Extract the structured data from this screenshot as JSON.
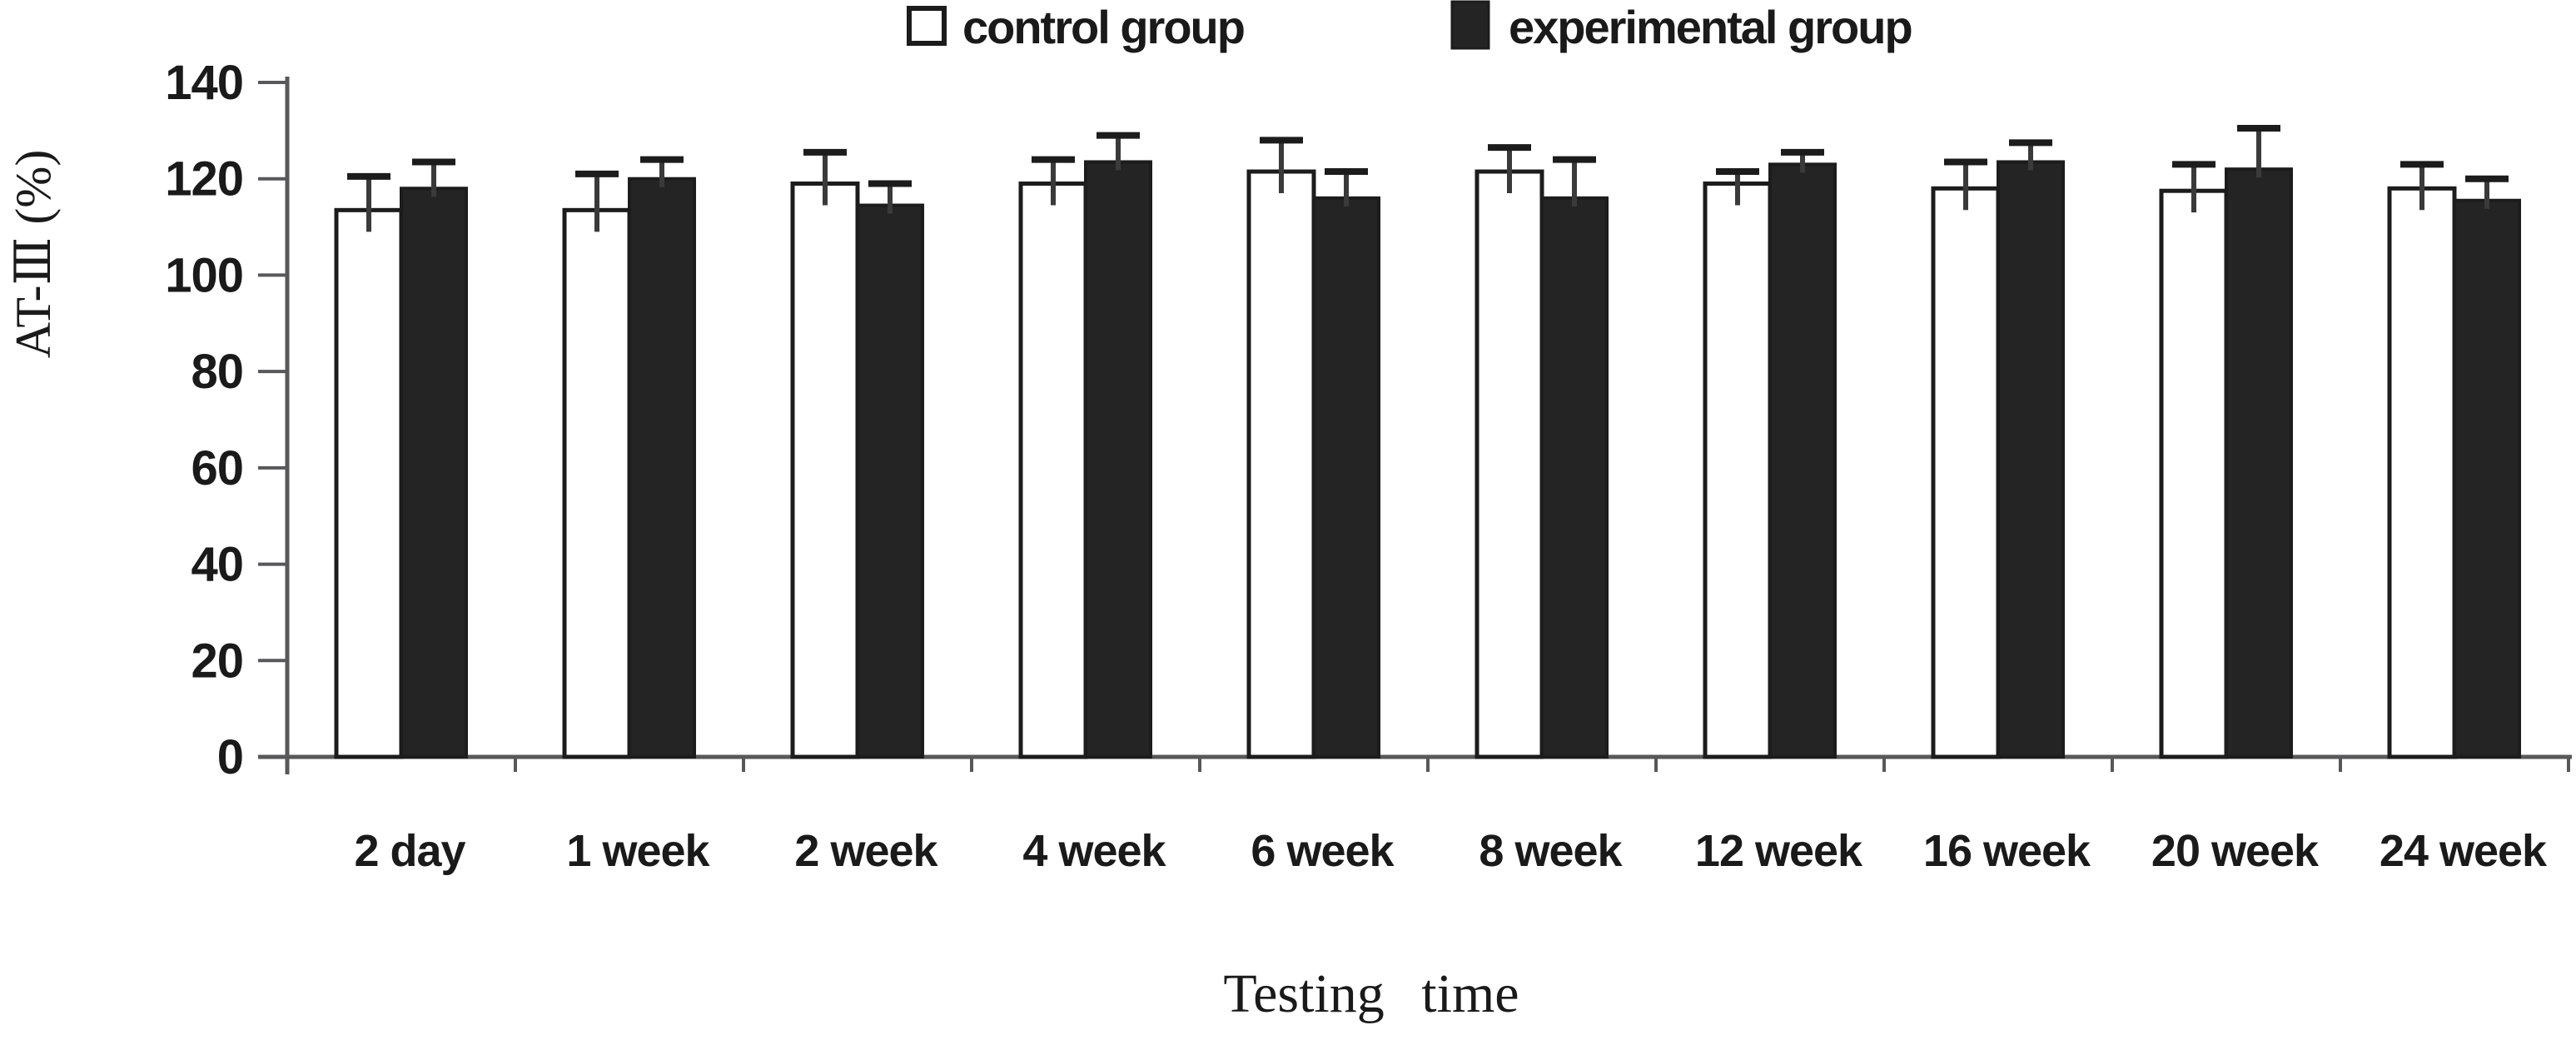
{
  "chart_data": {
    "type": "bar",
    "title": "",
    "xlabel": "Testing time",
    "ylabel": "AT-Ⅲ (%)",
    "categories": [
      "2 day",
      "1 week",
      "2 week",
      "4 week",
      "6 week",
      "8 week",
      "12 week",
      "16 week",
      "20 week",
      "24 week"
    ],
    "series": [
      {
        "name": "control group",
        "values": [
          113.5,
          113.5,
          119,
          119,
          121.5,
          121.5,
          119,
          118,
          117.5,
          118
        ],
        "errors": [
          7,
          7.5,
          6.5,
          5,
          6.5,
          5,
          2.5,
          5.5,
          5.5,
          5
        ],
        "fill": "#ffffff"
      },
      {
        "name": "experimental group",
        "values": [
          118,
          120,
          114.5,
          123.5,
          116,
          116,
          123,
          123.5,
          122,
          115.5
        ],
        "errors": [
          5.5,
          4,
          4.5,
          5.5,
          5.5,
          8,
          2.5,
          4,
          8.5,
          4.5
        ],
        "fill": "#242424"
      }
    ],
    "ylim": [
      0,
      140
    ],
    "yticks": [
      0,
      20,
      40,
      60,
      80,
      100,
      120,
      140
    ],
    "grid": false,
    "legend_position": "top-center",
    "error_bars": "upper-only"
  },
  "colors": {
    "background": "#ffffff",
    "axis": "#58585a",
    "text": "#1a1a1a",
    "bar_stroke": "#1c1c1c",
    "experimental_fill": "#242424",
    "error_bar": "#3a3a3a"
  }
}
